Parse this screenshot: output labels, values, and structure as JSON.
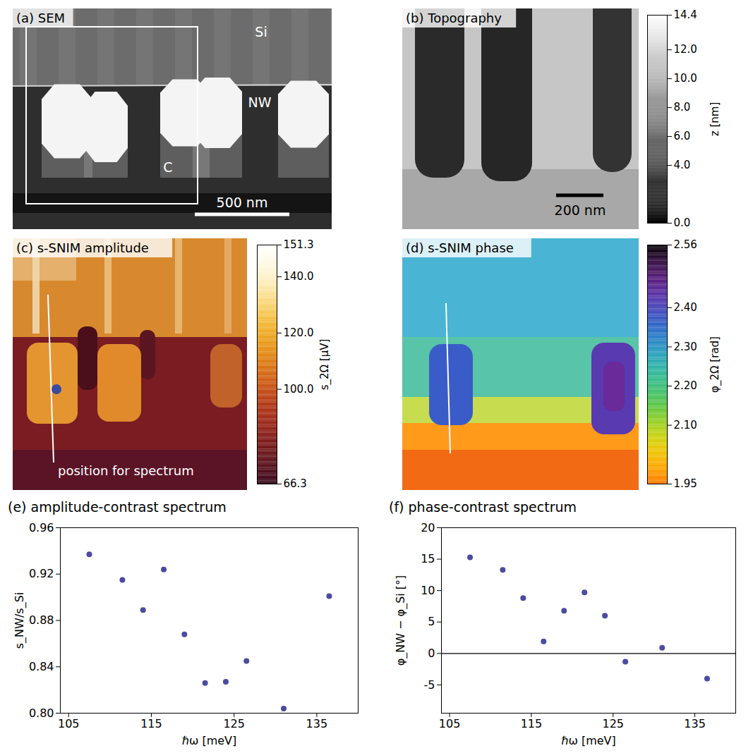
{
  "chart_data": [
    {
      "type": "image",
      "title": "(a) SEM",
      "labels": [
        "Si",
        "NW",
        "C"
      ],
      "scale_bar": "500 nm"
    },
    {
      "type": "heatmap",
      "title": "(b) Topography",
      "scale_bar": "200 nm",
      "colorbar": {
        "label": "z [nm]",
        "range": [
          0,
          14.4
        ],
        "ticks": [
          {
            "value": 0,
            "label": "0.0"
          },
          {
            "value": 4,
            "label": "4.0"
          },
          {
            "value": 6,
            "label": "6.0"
          },
          {
            "value": 8,
            "label": "8.0"
          },
          {
            "value": 10,
            "label": "10.0"
          },
          {
            "value": 12,
            "label": "12.0"
          },
          14.4
        ]
      }
    },
    {
      "type": "heatmap",
      "title": "(c) s-SNIM amplitude",
      "annotation": "position for spectrum",
      "colorbar": {
        "label": "s_2Ω [μV]",
        "range": [
          66.3,
          151.3
        ],
        "ticks": [
          66.3,
          {
            "value": 100,
            "label": "100.0"
          },
          {
            "value": 120,
            "label": "120.0"
          },
          {
            "value": 140,
            "label": "140.0"
          },
          151.3
        ]
      }
    },
    {
      "type": "heatmap",
      "title": "(d) s-SNIM phase",
      "colorbar": {
        "label": "φ_2Ω [rad]",
        "range": [
          1.95,
          2.56
        ],
        "ticks": [
          1.95,
          {
            "value": 2.1,
            "label": "2.10"
          },
          {
            "value": 2.2,
            "label": "2.20"
          },
          {
            "value": 2.3,
            "label": "2.30"
          },
          {
            "value": 2.4,
            "label": "2.40"
          },
          2.56
        ]
      }
    },
    {
      "type": "scatter",
      "title": "(e) amplitude-contrast spectrum",
      "x": [
        107.5,
        111.5,
        114,
        116.5,
        119,
        121.5,
        124,
        126.5,
        131,
        136.5
      ],
      "values": [
        0.937,
        0.915,
        0.889,
        0.924,
        0.868,
        0.826,
        0.827,
        0.845,
        0.804,
        0.901
      ],
      "xlim": [
        104,
        140
      ],
      "xticks": [
        105,
        115,
        125,
        135
      ],
      "ylim": [
        0.8,
        0.96
      ],
      "yticks": [
        {
          "value": 0.8,
          "label": "0.80"
        },
        0.84,
        0.88,
        0.92,
        0.96
      ],
      "x_label": "ℏω [meV]",
      "y_label": "s_NW/s_Si",
      "color": "#4b4ba0",
      "marker": "circle"
    },
    {
      "type": "scatter",
      "title": "(f) phase-contrast spectrum",
      "x": [
        107.5,
        111.5,
        114,
        116.5,
        119,
        121.5,
        124,
        126.5,
        131,
        136.5
      ],
      "values": [
        15.3,
        13.3,
        8.8,
        1.9,
        6.8,
        9.7,
        6.0,
        -1.3,
        0.9,
        -4.0
      ],
      "xlim": [
        104,
        140
      ],
      "xticks": [
        105,
        115,
        125,
        135
      ],
      "ylim": [
        -9.5,
        20
      ],
      "yticks": [
        -5,
        0,
        5,
        10,
        15,
        20
      ],
      "hline": 0,
      "x_label": "ℏω [meV]",
      "y_label": "φ_NW − φ_Si [°]",
      "color": "#4b4ba0",
      "marker": "circle"
    }
  ]
}
